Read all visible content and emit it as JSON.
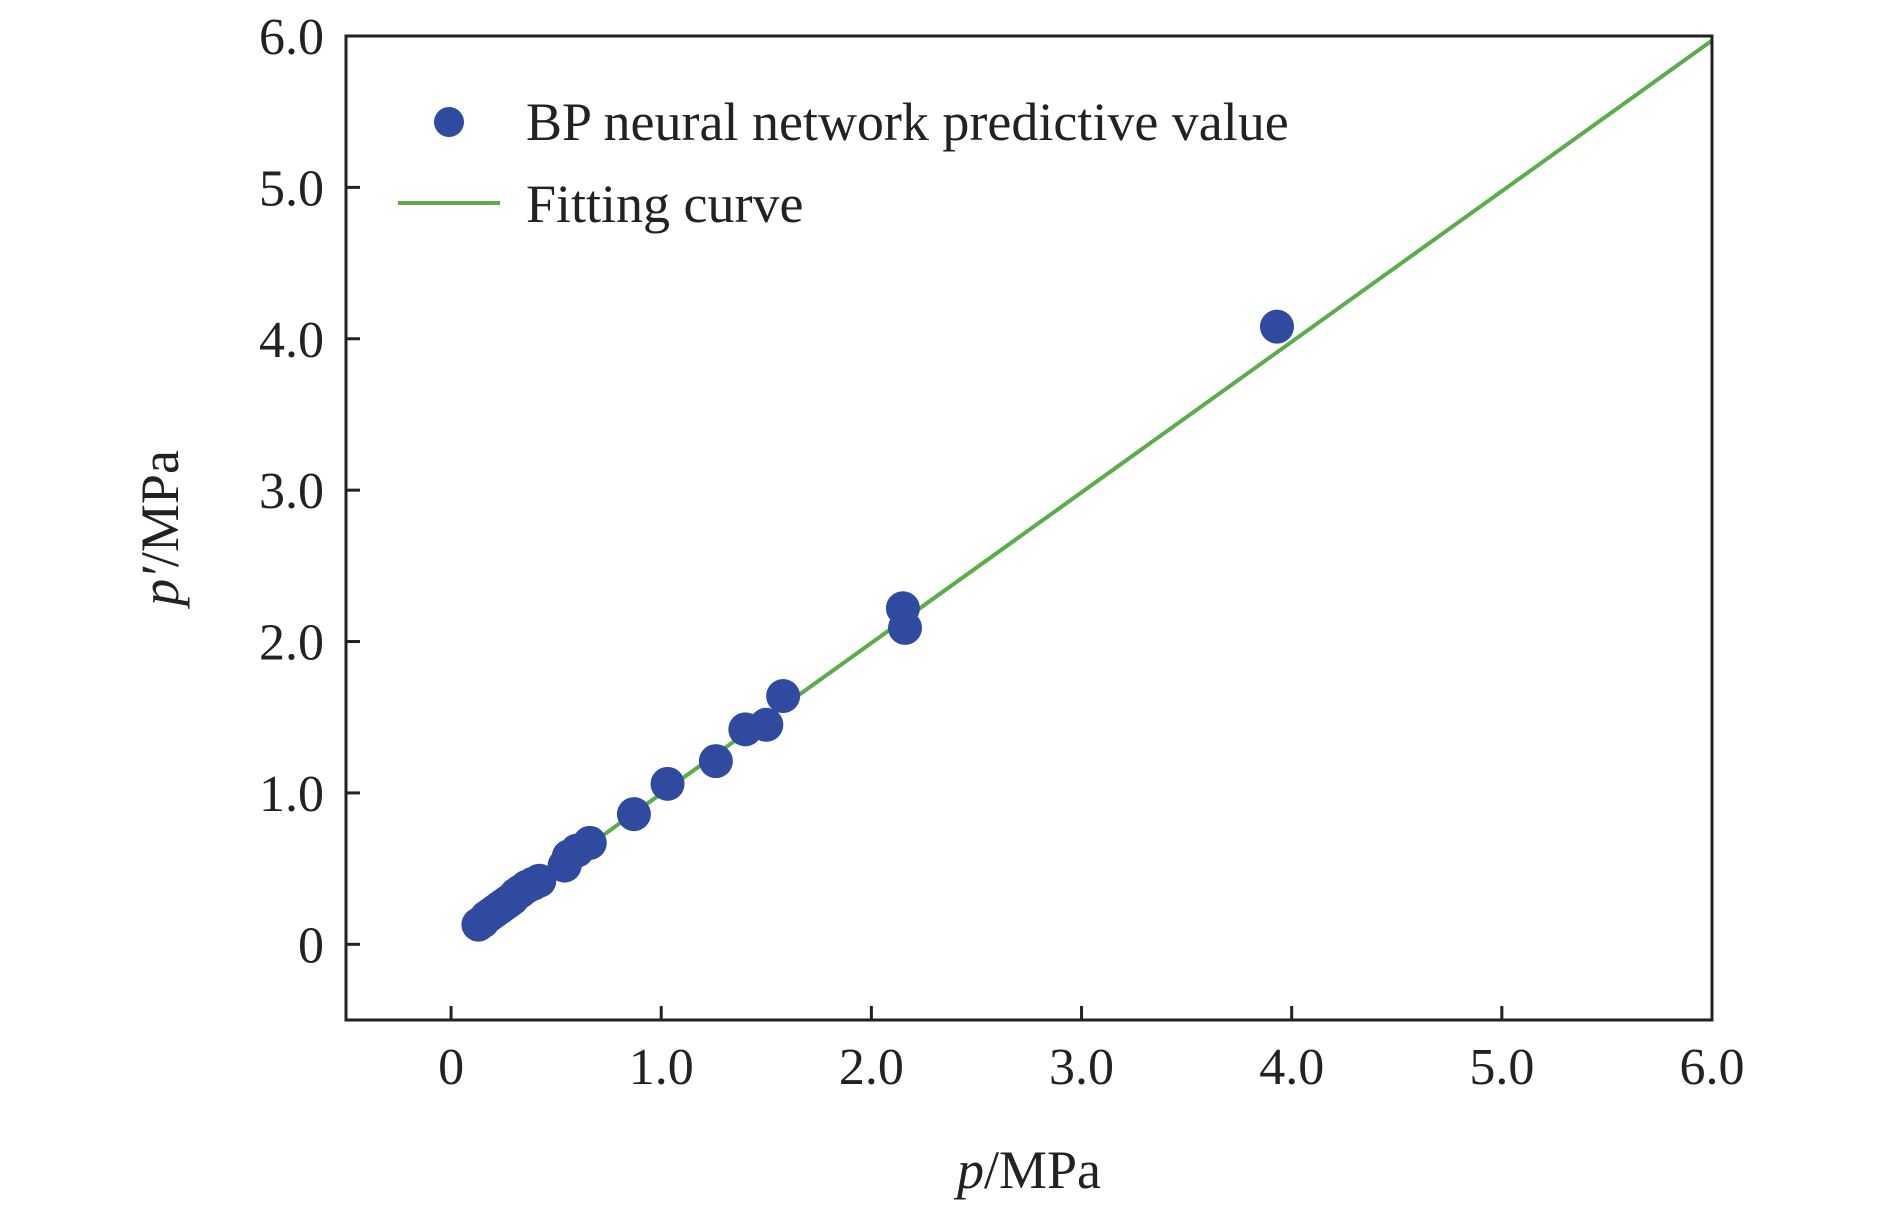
{
  "chart_data": {
    "type": "scatter",
    "title": "",
    "xlabel": {
      "var": "p",
      "unit": "/MPa"
    },
    "ylabel": {
      "var": "p′",
      "unit": "/MPa"
    },
    "xlim": [
      -0.5,
      6.0
    ],
    "ylim": [
      -0.5,
      6.0
    ],
    "xticks": [
      {
        "value": 0,
        "label": "0"
      },
      {
        "value": 1,
        "label": "1.0"
      },
      {
        "value": 2,
        "label": "2.0"
      },
      {
        "value": 3,
        "label": "3.0"
      },
      {
        "value": 4,
        "label": "4.0"
      },
      {
        "value": 5,
        "label": "5.0"
      },
      {
        "value": 6,
        "label": "6.0"
      }
    ],
    "yticks": [
      {
        "value": 0,
        "label": "0"
      },
      {
        "value": 1,
        "label": "1.0"
      },
      {
        "value": 2,
        "label": "2.0"
      },
      {
        "value": 3,
        "label": "3.0"
      },
      {
        "value": 4,
        "label": "4.0"
      },
      {
        "value": 5,
        "label": "5.0"
      },
      {
        "value": 6,
        "label": "6.0"
      }
    ],
    "grid": false,
    "legend_position": "top-left",
    "series": [
      {
        "name": "BP neural network predictive value",
        "kind": "scatter",
        "color": "#2f4a9e",
        "points": [
          [
            0.13,
            0.13
          ],
          [
            0.15,
            0.15
          ],
          [
            0.17,
            0.18
          ],
          [
            0.19,
            0.2
          ],
          [
            0.21,
            0.22
          ],
          [
            0.23,
            0.24
          ],
          [
            0.25,
            0.26
          ],
          [
            0.27,
            0.28
          ],
          [
            0.29,
            0.3
          ],
          [
            0.31,
            0.33
          ],
          [
            0.33,
            0.35
          ],
          [
            0.36,
            0.38
          ],
          [
            0.39,
            0.4
          ],
          [
            0.42,
            0.42
          ],
          [
            0.54,
            0.52
          ],
          [
            0.56,
            0.58
          ],
          [
            0.6,
            0.62
          ],
          [
            0.66,
            0.67
          ],
          [
            0.87,
            0.86
          ],
          [
            1.03,
            1.06
          ],
          [
            1.26,
            1.21
          ],
          [
            1.4,
            1.42
          ],
          [
            1.5,
            1.45
          ],
          [
            1.58,
            1.64
          ],
          [
            2.15,
            2.22
          ],
          [
            2.16,
            2.09
          ],
          [
            3.93,
            4.08
          ]
        ]
      },
      {
        "name": "Fitting curve",
        "kind": "line",
        "color": "#5aad4a",
        "points": [
          [
            0.13,
            0.13
          ],
          [
            6.0,
            5.97
          ]
        ]
      }
    ]
  }
}
